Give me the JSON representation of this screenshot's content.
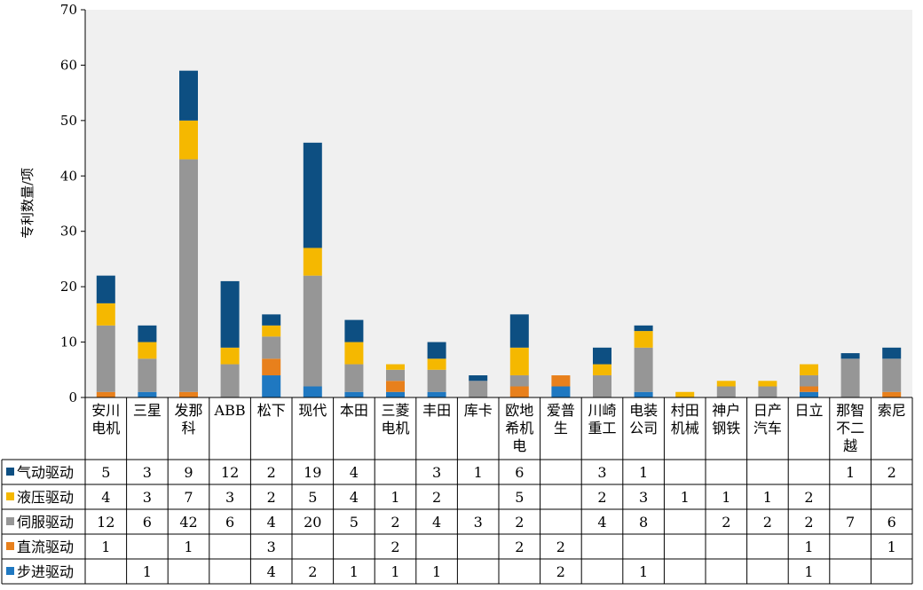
{
  "chart_data": {
    "type": "bar",
    "stacked": true,
    "ylabel": "专利数量/项",
    "ylim": [
      0,
      70
    ],
    "yticks": [
      0,
      10,
      20,
      30,
      40,
      50,
      60,
      70
    ],
    "grid": false,
    "legend": "table-rows-below-chart",
    "categories": [
      [
        "安川",
        "电机"
      ],
      [
        "三星"
      ],
      [
        "发那",
        "科"
      ],
      [
        "ABB"
      ],
      [
        "松下"
      ],
      [
        "现代"
      ],
      [
        "本田"
      ],
      [
        "三菱",
        "电机"
      ],
      [
        "丰田"
      ],
      [
        "库卡"
      ],
      [
        "欧地",
        "希机",
        "电"
      ],
      [
        "爱普",
        "生"
      ],
      [
        "川崎",
        "重工"
      ],
      [
        "电装",
        "公司"
      ],
      [
        "村田",
        "机械"
      ],
      [
        "神户",
        "钢铁"
      ],
      [
        "日产",
        "汽车"
      ],
      [
        "日立"
      ],
      [
        "那智",
        "不二",
        "越"
      ],
      [
        "索尼"
      ]
    ],
    "series": [
      {
        "name": "步进驱动",
        "color": "#1f78c1",
        "values": [
          null,
          1,
          null,
          null,
          4,
          2,
          1,
          1,
          1,
          null,
          null,
          2,
          null,
          1,
          null,
          null,
          null,
          1,
          null,
          null
        ]
      },
      {
        "name": "直流驱动",
        "color": "#e8801c",
        "values": [
          1,
          null,
          1,
          null,
          3,
          null,
          null,
          2,
          null,
          null,
          2,
          2,
          null,
          null,
          null,
          null,
          null,
          1,
          null,
          1
        ]
      },
      {
        "name": "伺服驱动",
        "color": "#969696",
        "values": [
          12,
          6,
          42,
          6,
          4,
          20,
          5,
          2,
          4,
          3,
          2,
          null,
          4,
          8,
          null,
          2,
          2,
          2,
          7,
          6
        ]
      },
      {
        "name": "液压驱动",
        "color": "#f5b800",
        "values": [
          4,
          3,
          7,
          3,
          2,
          5,
          4,
          1,
          2,
          null,
          5,
          null,
          2,
          3,
          1,
          1,
          1,
          2,
          null,
          null
        ]
      },
      {
        "name": "气动驱动",
        "color": "#0d4f82",
        "values": [
          5,
          3,
          9,
          12,
          2,
          19,
          4,
          null,
          3,
          1,
          6,
          null,
          3,
          1,
          null,
          null,
          null,
          null,
          1,
          2
        ]
      }
    ],
    "table_row_order": [
      "气动驱动",
      "液压驱动",
      "伺服驱动",
      "直流驱动",
      "步进驱动"
    ]
  }
}
